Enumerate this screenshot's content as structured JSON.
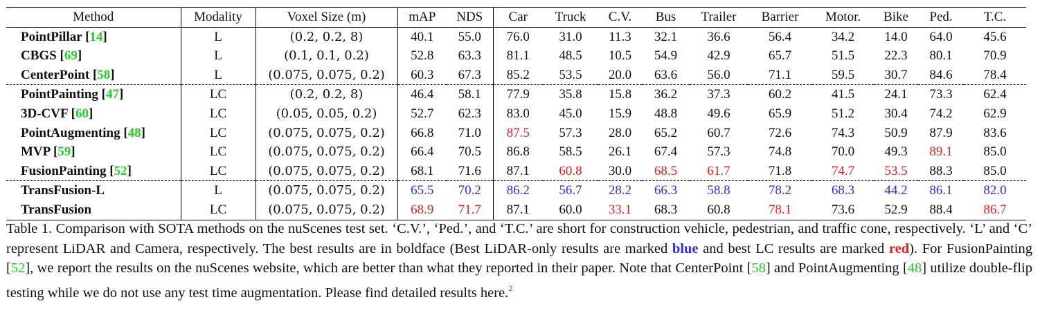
{
  "table": {
    "headers": [
      "Method",
      "Modality",
      "Voxel Size (m)",
      "mAP",
      "NDS",
      "Car",
      "Truck",
      "C.V.",
      "Bus",
      "Trailer",
      "Barrier",
      "Motor.",
      "Bike",
      "Ped.",
      "T.C."
    ],
    "rows": [
      {
        "method": "PointPillar",
        "ref": "14",
        "modality": "L",
        "voxel": "(0.2, 0.2, 8)",
        "values": [
          "40.1",
          "55.0",
          "76.0",
          "31.0",
          "11.3",
          "32.1",
          "36.6",
          "56.4",
          "34.2",
          "14.0",
          "64.0",
          "45.6"
        ],
        "styles": [
          "",
          "",
          "",
          "",
          "",
          "",
          "",
          "",
          "",
          "",
          "",
          ""
        ]
      },
      {
        "method": "CBGS",
        "ref": "69",
        "modality": "L",
        "voxel": "(0.1, 0.1, 0.2)",
        "values": [
          "52.8",
          "63.3",
          "81.1",
          "48.5",
          "10.5",
          "54.9",
          "42.9",
          "65.7",
          "51.5",
          "22.3",
          "80.1",
          "70.9"
        ],
        "styles": [
          "",
          "",
          "",
          "",
          "",
          "",
          "",
          "",
          "",
          "",
          "",
          ""
        ]
      },
      {
        "method": "CenterPoint",
        "ref": "58",
        "modality": "L",
        "voxel": "(0.075, 0.075, 0.2)",
        "values": [
          "60.3",
          "67.3",
          "85.2",
          "53.5",
          "20.0",
          "63.6",
          "56.0",
          "71.1",
          "59.5",
          "30.7",
          "84.6",
          "78.4"
        ],
        "styles": [
          "",
          "",
          "",
          "",
          "",
          "",
          "",
          "",
          "",
          "",
          "",
          ""
        ]
      },
      {
        "method": "PointPainting",
        "ref": "47",
        "modality": "LC",
        "voxel": "(0.2, 0.2, 8)",
        "values": [
          "46.4",
          "58.1",
          "77.9",
          "35.8",
          "15.8",
          "36.2",
          "37.3",
          "60.2",
          "41.5",
          "24.1",
          "73.3",
          "62.4"
        ],
        "styles": [
          "",
          "",
          "",
          "",
          "",
          "",
          "",
          "",
          "",
          "",
          "",
          ""
        ]
      },
      {
        "method": "3D-CVF",
        "ref": "60",
        "modality": "LC",
        "voxel": "(0.05, 0.05, 0.2)",
        "values": [
          "52.7",
          "62.3",
          "83.0",
          "45.0",
          "15.9",
          "48.8",
          "49.6",
          "65.9",
          "51.2",
          "30.4",
          "74.2",
          "62.9"
        ],
        "styles": [
          "",
          "",
          "",
          "",
          "",
          "",
          "",
          "",
          "",
          "",
          "",
          ""
        ]
      },
      {
        "method": "PointAugmenting",
        "ref": "48",
        "modality": "LC",
        "voxel": "(0.075, 0.075, 0.2)",
        "values": [
          "66.8",
          "71.0",
          "87.5",
          "57.3",
          "28.0",
          "65.2",
          "60.7",
          "72.6",
          "74.3",
          "50.9",
          "87.9",
          "83.6"
        ],
        "styles": [
          "",
          "",
          "red",
          "",
          "",
          "",
          "",
          "",
          "",
          "",
          "",
          ""
        ]
      },
      {
        "method": "MVP",
        "ref": "59",
        "modality": "LC",
        "voxel": "(0.075, 0.075, 0.2)",
        "values": [
          "66.4",
          "70.5",
          "86.8",
          "58.5",
          "26.1",
          "67.4",
          "57.3",
          "74.8",
          "70.0",
          "49.3",
          "89.1",
          "85.0"
        ],
        "styles": [
          "",
          "",
          "",
          "",
          "",
          "",
          "",
          "",
          "",
          "",
          "red",
          ""
        ]
      },
      {
        "method": "FusionPainting",
        "ref": "52",
        "modality": "LC",
        "voxel": "(0.075, 0.075, 0.2)",
        "values": [
          "68.1",
          "71.6",
          "87.1",
          "60.8",
          "30.0",
          "68.5",
          "61.7",
          "71.8",
          "74.7",
          "53.5",
          "88.3",
          "85.0"
        ],
        "styles": [
          "",
          "",
          "",
          "red",
          "",
          "red",
          "red",
          "",
          "red",
          "red",
          "",
          ""
        ]
      },
      {
        "method": "TransFusion-L",
        "ref": "",
        "modality": "L",
        "voxel": "(0.075, 0.075, 0.2)",
        "values": [
          "65.5",
          "70.2",
          "86.2",
          "56.7",
          "28.2",
          "66.3",
          "58.8",
          "78.2",
          "68.3",
          "44.2",
          "86.1",
          "82.0"
        ],
        "styles": [
          "blue",
          "blue",
          "blue",
          "blue",
          "blue",
          "blue",
          "blue",
          "blue",
          "blue",
          "blue",
          "blue",
          "blue"
        ]
      },
      {
        "method": "TransFusion",
        "ref": "",
        "modality": "LC",
        "voxel": "(0.075, 0.075, 0.2)",
        "values": [
          "68.9",
          "71.7",
          "87.1",
          "60.0",
          "33.1",
          "68.3",
          "60.8",
          "78.1",
          "73.6",
          "52.9",
          "88.4",
          "86.7"
        ],
        "styles": [
          "red",
          "red",
          "",
          "",
          "red",
          "",
          "",
          "red",
          "",
          "",
          "",
          "red"
        ]
      }
    ],
    "dashed_after": [
      2,
      7
    ]
  },
  "caption": {
    "p1": "Table 1. Comparison with SOTA methods on the nuScenes test set. ‘C.V.’, ‘Ped.’, and ‘T.C.’ are short for construction vehicle, pedestrian, and traffic cone, respectively. ‘L’ and ‘C’ represent LiDAR and Camera, respectively. The best results are in boldface (Best LiDAR-only results are marked ",
    "blue_word": "blue",
    "p2": " and best LC results are marked ",
    "red_word": "red",
    "p3": "). For FusionPainting [",
    "ref1": "52",
    "p4": "], we report the results on the nuScenes website, which are better than what they reported in their paper. Note that CenterPoint [",
    "ref2": "58",
    "p5": "] and PointAugmenting [",
    "ref3": "48",
    "p6": "] utilize double-flip testing while we do not use any test time augmentation. Please find detailed results here.",
    "footnote": "2"
  },
  "colors": {
    "citation": "#1fd11f",
    "best_lidar": "#2d2de6",
    "best_lc": "#e41e1e"
  }
}
